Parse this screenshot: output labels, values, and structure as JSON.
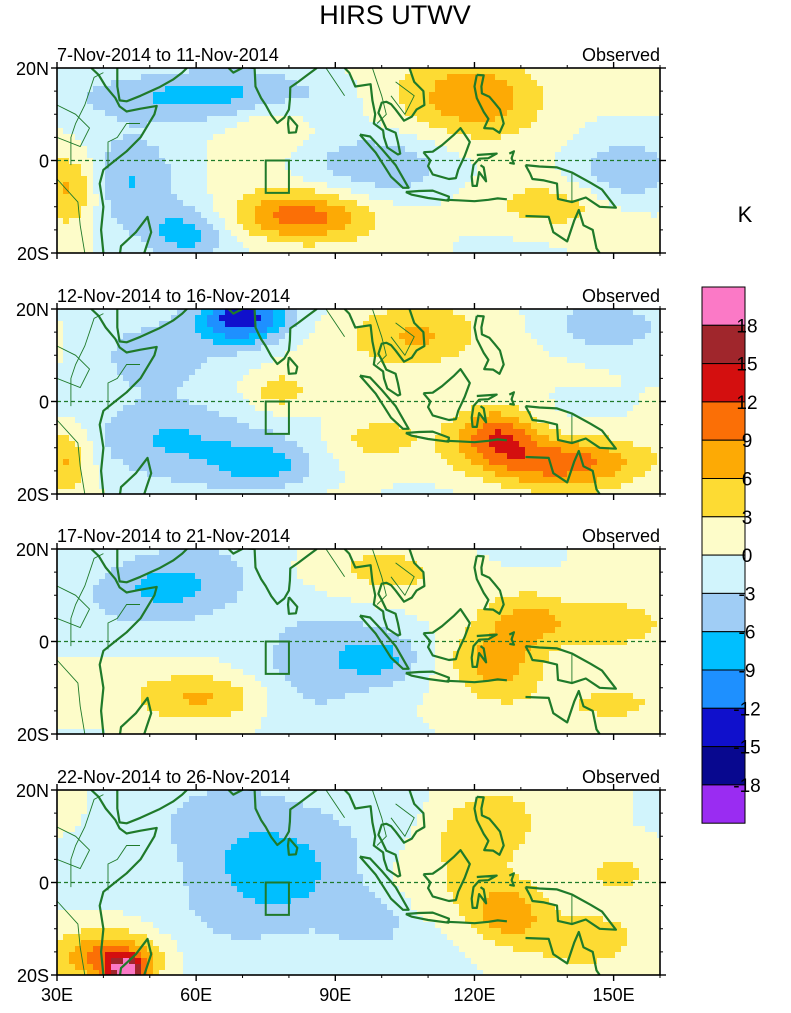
{
  "title": "HIRS UTWV",
  "unit_label": "K",
  "colors": {
    "coast": "#1f7a2a",
    "equator": "#1f7a2a",
    "box": "#1f7a2a",
    "frame": "#000000"
  },
  "chart_data": {
    "type": "heatmap",
    "variable": "HIRS UTWV anomaly",
    "units": "K",
    "x_ticks": [
      "30E",
      "60E",
      "90E",
      "120E",
      "150E"
    ],
    "y_ticks": [
      "20N",
      "0",
      "20S"
    ],
    "xlim": [
      30,
      160
    ],
    "ylim": [
      -20,
      20
    ],
    "levels": [
      -18,
      -15,
      -12,
      -9,
      -6,
      -3,
      0,
      3,
      6,
      9,
      12,
      15,
      18
    ],
    "level_labels": [
      "18",
      "15",
      "12",
      "9",
      "6",
      "3",
      "0",
      "-3",
      "-6",
      "-9",
      "-12",
      "-15",
      "-18"
    ],
    "palette": [
      "#9a2cf2",
      "#08088f",
      "#1010cc",
      "#1e90ff",
      "#00bfff",
      "#a0cdf5",
      "#d1f4fc",
      "#fdfcc9",
      "#fddb33",
      "#fdaa05",
      "#fb6f06",
      "#d40f0f",
      "#a0262c",
      "#fb79c6"
    ],
    "box_region": {
      "lon": [
        75,
        80
      ],
      "lat": [
        -7,
        0
      ]
    },
    "panels": [
      {
        "date_range": "7-Nov-2014 to 11-Nov-2014",
        "label": "Observed",
        "features": [
          {
            "lon": 82,
            "lat": -12,
            "sx": 10,
            "sy": 4,
            "value": 11
          },
          {
            "lon": 33,
            "lat": -6,
            "sx": 5,
            "sy": 6,
            "value": 8
          },
          {
            "lon": 122,
            "lat": 14,
            "sx": 10,
            "sy": 6,
            "value": 8
          },
          {
            "lon": 76,
            "lat": 8,
            "sx": 6,
            "sy": 4,
            "value": 4
          },
          {
            "lon": 138,
            "lat": -10,
            "sx": 12,
            "sy": 4,
            "value": 5
          },
          {
            "lon": 60,
            "lat": 14,
            "sx": 20,
            "sy": 4,
            "value": -7
          },
          {
            "lon": 45,
            "lat": -6,
            "sx": 8,
            "sy": 8,
            "value": -6
          },
          {
            "lon": 100,
            "lat": -1,
            "sx": 12,
            "sy": 5,
            "value": -5
          },
          {
            "lon": 152,
            "lat": -4,
            "sx": 8,
            "sy": 6,
            "value": -5
          },
          {
            "lon": 110,
            "lat": 12,
            "sx": 10,
            "sy": 8,
            "value": 2
          },
          {
            "lon": 58,
            "lat": -16,
            "sx": 6,
            "sy": 4,
            "value": -7
          }
        ]
      },
      {
        "date_range": "12-Nov-2014 to 16-Nov-2014",
        "label": "Observed",
        "features": [
          {
            "lon": 70,
            "lat": 18,
            "sx": 7,
            "sy": 4,
            "value": -14
          },
          {
            "lon": 138,
            "lat": -13,
            "sx": 13,
            "sy": 4,
            "value": 11
          },
          {
            "lon": 125,
            "lat": -7,
            "sx": 6,
            "sy": 4,
            "value": 10
          },
          {
            "lon": 108,
            "lat": 14,
            "sx": 10,
            "sy": 5,
            "value": 7
          },
          {
            "lon": 32,
            "lat": -12,
            "sx": 4,
            "sy": 5,
            "value": 7
          },
          {
            "lon": 55,
            "lat": -8,
            "sx": 12,
            "sy": 6,
            "value": -7
          },
          {
            "lon": 75,
            "lat": -14,
            "sx": 8,
            "sy": 4,
            "value": -7
          },
          {
            "lon": 148,
            "lat": 16,
            "sx": 8,
            "sy": 4,
            "value": -6
          },
          {
            "lon": 50,
            "lat": 10,
            "sx": 10,
            "sy": 6,
            "value": -4
          },
          {
            "lon": 78,
            "lat": 2,
            "sx": 5,
            "sy": 3,
            "value": 5
          },
          {
            "lon": 98,
            "lat": -8,
            "sx": 8,
            "sy": 4,
            "value": 4
          }
        ]
      },
      {
        "date_range": "17-Nov-2014 to 21-Nov-2014",
        "label": "Observed",
        "features": [
          {
            "lon": 62,
            "lat": -12,
            "sx": 10,
            "sy": 4,
            "value": 7
          },
          {
            "lon": 55,
            "lat": 12,
            "sx": 12,
            "sy": 6,
            "value": -7
          },
          {
            "lon": 125,
            "lat": -5,
            "sx": 7,
            "sy": 6,
            "value": 8
          },
          {
            "lon": 150,
            "lat": 4,
            "sx": 9,
            "sy": 4,
            "value": 6
          },
          {
            "lon": 132,
            "lat": 5,
            "sx": 6,
            "sy": 4,
            "value": 5
          },
          {
            "lon": 100,
            "lat": 14,
            "sx": 12,
            "sy": 5,
            "value": 4
          },
          {
            "lon": 86,
            "lat": -5,
            "sx": 10,
            "sy": 10,
            "value": -5
          },
          {
            "lon": 100,
            "lat": -4,
            "sx": 6,
            "sy": 4,
            "value": -6
          },
          {
            "lon": 148,
            "lat": -14,
            "sx": 12,
            "sy": 4,
            "value": 3
          }
        ]
      },
      {
        "date_range": "22-Nov-2014 to 26-Nov-2014",
        "label": "Observed",
        "features": [
          {
            "lon": 75,
            "lat": 4,
            "sx": 16,
            "sy": 13,
            "value": -7
          },
          {
            "lon": 42,
            "lat": -16,
            "sx": 8,
            "sy": 4,
            "value": 11
          },
          {
            "lon": 45,
            "lat": -19,
            "sx": 3,
            "sy": 2,
            "value": 15
          },
          {
            "lon": 122,
            "lat": 12,
            "sx": 8,
            "sy": 6,
            "value": 6
          },
          {
            "lon": 127,
            "lat": -6,
            "sx": 6,
            "sy": 5,
            "value": 8
          },
          {
            "lon": 145,
            "lat": -12,
            "sx": 10,
            "sy": 5,
            "value": 4
          },
          {
            "lon": 110,
            "lat": -1,
            "sx": 8,
            "sy": 6,
            "value": 2
          },
          {
            "lon": 150,
            "lat": 2,
            "sx": 6,
            "sy": 4,
            "value": 4
          },
          {
            "lon": 98,
            "lat": -8,
            "sx": 6,
            "sy": 4,
            "value": -4
          }
        ]
      }
    ]
  }
}
